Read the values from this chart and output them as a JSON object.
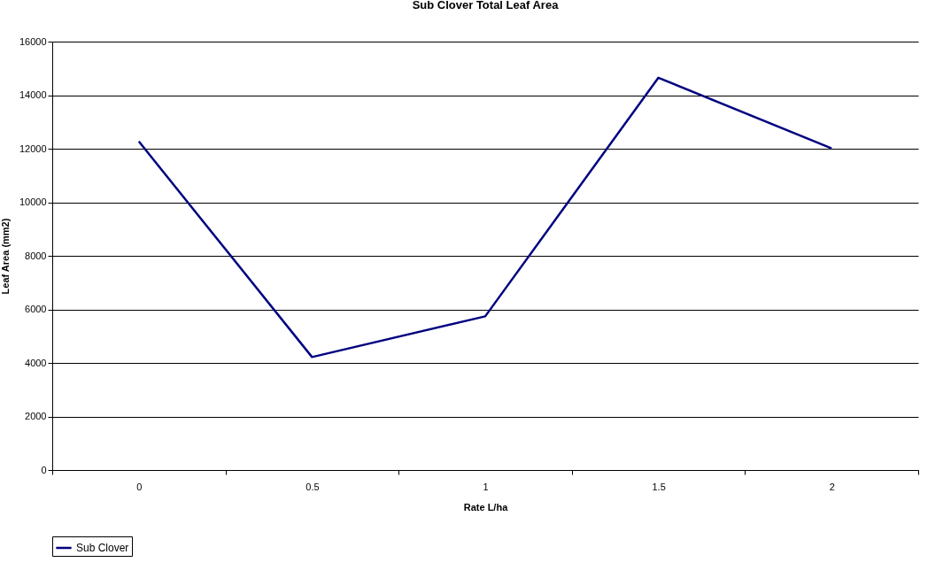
{
  "chart_data": {
    "type": "line",
    "title": "Sub Clover Total Leaf Area",
    "xlabel": "Rate L/ha",
    "ylabel": "Leaf Area (mm2)",
    "categories": [
      "0",
      "0.5",
      "1",
      "1.5",
      "2"
    ],
    "series": [
      {
        "name": "Sub Clover",
        "color": "#000080",
        "values": [
          12270,
          4220,
          5740,
          14650,
          12010
        ]
      }
    ],
    "ylim": [
      0,
      16000
    ],
    "yticks": [
      0,
      2000,
      4000,
      6000,
      8000,
      10000,
      12000,
      14000,
      16000
    ],
    "grid": "y",
    "legend": "bottom",
    "marker": "none",
    "line_style": "solid"
  }
}
